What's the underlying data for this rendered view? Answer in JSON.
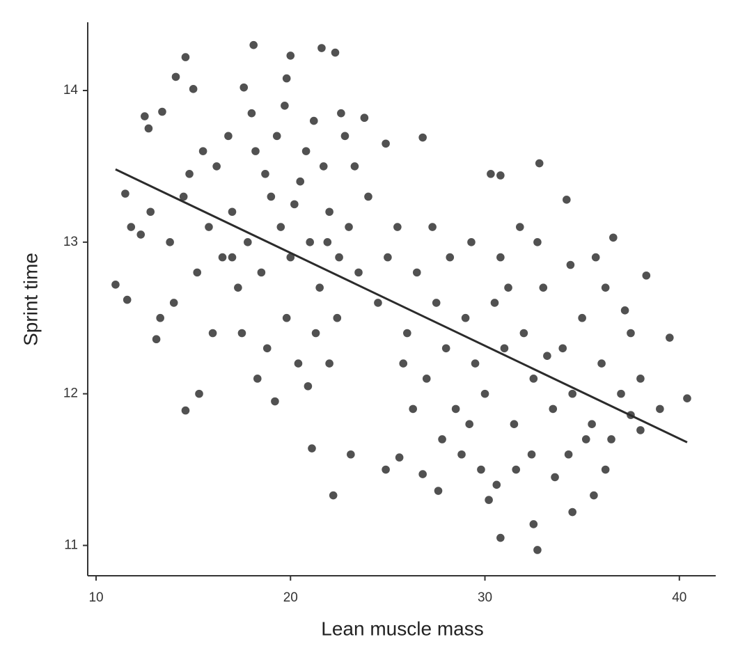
{
  "chart_data": {
    "type": "scatter",
    "x_label": "Lean muscle mass",
    "y_label": "Sprint time",
    "color": "#333333",
    "x": [
      11.0,
      11.6,
      11.8,
      11.5,
      12.5,
      12.7,
      13.4,
      14.1,
      14.6,
      15.0,
      18.1,
      20.0,
      21.6,
      22.3,
      19.8,
      17.6,
      14.6,
      15.3,
      13.1,
      21.1,
      22.2,
      23.1,
      24.9,
      25.6,
      26.8,
      27.6,
      30.8,
      32.7,
      32.5,
      34.5,
      39.5,
      40.4,
      38.3,
      36.6,
      34.2,
      32.8,
      30.8,
      30.3,
      26.8,
      24.9,
      23.8,
      22.6,
      39.0,
      38.0,
      37.5,
      36.2,
      35.6,
      16.2,
      17.0,
      17.8,
      18.5,
      19.0,
      19.5,
      20.0,
      20.5,
      21.0,
      21.5,
      22.0,
      22.5,
      23.0,
      18.2,
      19.3,
      20.8,
      21.7,
      17.3,
      16.5,
      15.8,
      15.2,
      14.5,
      13.8,
      14.0,
      13.3,
      16.0,
      17.5,
      18.8,
      19.8,
      20.4,
      21.3,
      22.4,
      23.5,
      24.0,
      23.3,
      22.8,
      21.2,
      19.7,
      18.0,
      16.8,
      15.5,
      14.8,
      12.8,
      12.3,
      24.5,
      25.0,
      25.5,
      22.0,
      20.9,
      19.2,
      18.3,
      17.0,
      20.2,
      21.9,
      18.7,
      26.0,
      27.0,
      27.5,
      28.0,
      28.5,
      29.0,
      29.5,
      30.0,
      30.5,
      31.0,
      31.5,
      32.0,
      32.5,
      33.0,
      33.5,
      34.0,
      34.5,
      35.0,
      35.5,
      36.0,
      36.5,
      37.0,
      37.5,
      38.0,
      28.2,
      29.3,
      30.8,
      31.8,
      32.7,
      27.3,
      26.5,
      28.8,
      29.8,
      30.6,
      31.6,
      32.4,
      33.6,
      34.3,
      35.2,
      26.3,
      25.8,
      27.8,
      29.2,
      30.2,
      33.2,
      36.2,
      35.7,
      34.4,
      37.2,
      31.2
    ],
    "values": [
      12.72,
      12.62,
      13.1,
      13.32,
      13.83,
      13.75,
      13.86,
      14.09,
      14.22,
      14.01,
      14.3,
      14.23,
      14.28,
      14.25,
      14.08,
      14.02,
      11.89,
      12.0,
      12.36,
      11.64,
      11.33,
      11.6,
      11.5,
      11.58,
      11.47,
      11.36,
      11.05,
      10.97,
      11.14,
      11.22,
      12.37,
      11.97,
      12.78,
      13.03,
      13.28,
      13.52,
      13.44,
      13.45,
      13.69,
      13.65,
      13.82,
      13.85,
      11.9,
      11.76,
      11.86,
      11.5,
      11.33,
      13.5,
      13.2,
      13.0,
      12.8,
      13.3,
      13.1,
      12.9,
      13.4,
      13.0,
      12.7,
      13.2,
      12.9,
      13.1,
      13.6,
      13.7,
      13.6,
      13.5,
      12.7,
      12.9,
      13.1,
      12.8,
      13.3,
      13.0,
      12.6,
      12.5,
      12.4,
      12.4,
      12.3,
      12.5,
      12.2,
      12.4,
      12.5,
      12.8,
      13.3,
      13.5,
      13.7,
      13.8,
      13.9,
      13.85,
      13.7,
      13.6,
      13.45,
      13.2,
      13.05,
      12.6,
      12.9,
      13.1,
      12.2,
      12.05,
      11.95,
      12.1,
      12.9,
      13.25,
      13.0,
      13.45,
      12.4,
      12.1,
      12.6,
      12.3,
      11.9,
      12.5,
      12.2,
      12.0,
      12.6,
      12.3,
      11.8,
      12.4,
      12.1,
      12.7,
      11.9,
      12.3,
      12.0,
      12.5,
      11.8,
      12.2,
      11.7,
      12.0,
      12.4,
      12.1,
      12.9,
      13.0,
      12.9,
      13.1,
      13.0,
      13.1,
      12.8,
      11.6,
      11.5,
      11.4,
      11.5,
      11.6,
      11.45,
      11.6,
      11.7,
      11.9,
      12.2,
      11.7,
      11.8,
      11.3,
      12.25,
      12.7,
      12.9,
      12.85,
      12.55,
      12.7
    ],
    "fit": {
      "x": [
        11.0,
        40.4
      ],
      "y": [
        13.48,
        11.68
      ],
      "color": "#2b2b2b"
    },
    "xlim": [
      9.57,
      41.87
    ],
    "xticks": [
      10,
      20,
      30,
      40
    ],
    "ylim": [
      10.8,
      14.45
    ],
    "yticks": [
      11,
      12,
      13,
      14
    ]
  }
}
